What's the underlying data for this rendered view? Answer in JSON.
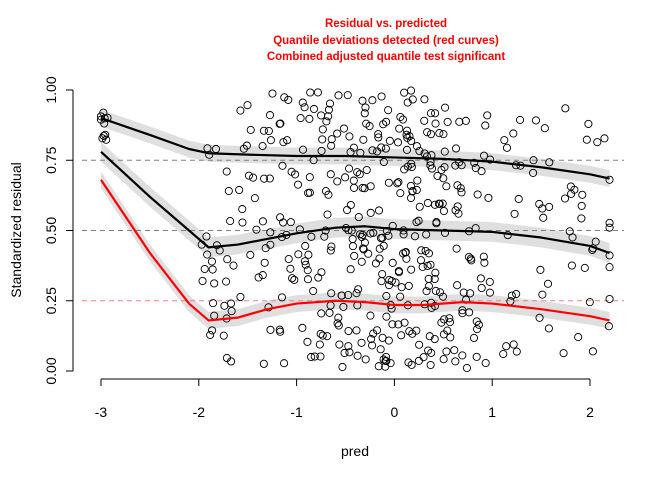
{
  "chart_data": {
    "type": "scatter",
    "title_lines": [
      "Residual vs. predicted",
      "Quantile deviations detected (red curves)",
      "Combined adjusted quantile test significant"
    ],
    "title_color": "#ff0000",
    "xlabel": "pred",
    "ylabel": "Standardized residual",
    "xlim": [
      -3.0,
      2.2
    ],
    "ylim": [
      0,
      1
    ],
    "xticks": [
      -3,
      -2,
      -1,
      0,
      1,
      2
    ],
    "xtick_labels": [
      "-3",
      "-2",
      "-1",
      "0",
      "1",
      "2"
    ],
    "yticks": [
      0,
      0.25,
      0.5,
      0.75,
      1
    ],
    "ytick_labels": [
      "0.00",
      "0.25",
      "0.50",
      "0.75",
      "1.00"
    ],
    "reference_lines": [
      {
        "y": 0.25,
        "color": "#f08080",
        "style": "dashed"
      },
      {
        "y": 0.5,
        "color": "#808080",
        "style": "dashed"
      },
      {
        "y": 0.75,
        "color": "#808080",
        "style": "dashed"
      }
    ],
    "quantile_curves": [
      {
        "quantile": 0.25,
        "color": "#ff0000",
        "band_halfwidth": 0.03,
        "points": [
          [
            -3.0,
            0.68
          ],
          [
            -2.5,
            0.42
          ],
          [
            -2.1,
            0.24
          ],
          [
            -1.9,
            0.18
          ],
          [
            -1.6,
            0.19
          ],
          [
            -1.3,
            0.22
          ],
          [
            -1.0,
            0.24
          ],
          [
            -0.6,
            0.25
          ],
          [
            -0.3,
            0.245
          ],
          [
            0.0,
            0.235
          ],
          [
            0.3,
            0.235
          ],
          [
            0.7,
            0.245
          ],
          [
            1.0,
            0.24
          ],
          [
            1.5,
            0.22
          ],
          [
            2.0,
            0.195
          ],
          [
            2.2,
            0.18
          ]
        ]
      },
      {
        "quantile": 0.5,
        "color": "#000000",
        "band_halfwidth": 0.035,
        "points": [
          [
            -3.0,
            0.78
          ],
          [
            -2.5,
            0.62
          ],
          [
            -2.1,
            0.5
          ],
          [
            -1.9,
            0.44
          ],
          [
            -1.6,
            0.45
          ],
          [
            -1.3,
            0.47
          ],
          [
            -1.0,
            0.49
          ],
          [
            -0.6,
            0.51
          ],
          [
            -0.3,
            0.515
          ],
          [
            0.0,
            0.505
          ],
          [
            0.5,
            0.5
          ],
          [
            1.0,
            0.495
          ],
          [
            1.5,
            0.475
          ],
          [
            2.0,
            0.445
          ],
          [
            2.2,
            0.42
          ]
        ]
      },
      {
        "quantile": 0.75,
        "color": "#000000",
        "band_halfwidth": 0.03,
        "points": [
          [
            -3.0,
            0.9
          ],
          [
            -2.5,
            0.84
          ],
          [
            -2.1,
            0.79
          ],
          [
            -1.9,
            0.775
          ],
          [
            -1.5,
            0.77
          ],
          [
            -1.0,
            0.765
          ],
          [
            -0.5,
            0.765
          ],
          [
            0.0,
            0.76
          ],
          [
            0.5,
            0.755
          ],
          [
            1.0,
            0.745
          ],
          [
            1.5,
            0.725
          ],
          [
            2.0,
            0.7
          ],
          [
            2.2,
            0.685
          ]
        ]
      }
    ],
    "point_groups": [
      {
        "x": -3.0,
        "n": 10,
        "y_range": [
          0.8,
          0.92
        ]
      },
      {
        "x": -1.9,
        "n": 16,
        "y_range": [
          0.05,
          0.9
        ]
      },
      {
        "x": -1.7,
        "n": 14,
        "y_range": [
          0.03,
          0.75
        ]
      },
      {
        "x": -1.5,
        "n": 14,
        "y_range": [
          0.03,
          0.99
        ]
      },
      {
        "x": -1.3,
        "n": 18,
        "y_range": [
          0.02,
          0.99
        ]
      },
      {
        "x": -1.1,
        "n": 22,
        "y_range": [
          0.02,
          0.99
        ]
      },
      {
        "x": -0.9,
        "n": 26,
        "y_range": [
          0.02,
          1.0
        ]
      },
      {
        "x": -0.7,
        "n": 30,
        "y_range": [
          0.01,
          1.0
        ]
      },
      {
        "x": -0.5,
        "n": 34,
        "y_range": [
          0.01,
          1.0
        ]
      },
      {
        "x": -0.3,
        "n": 38,
        "y_range": [
          0.01,
          1.0
        ]
      },
      {
        "x": -0.1,
        "n": 44,
        "y_range": [
          0.01,
          1.0
        ]
      },
      {
        "x": 0.1,
        "n": 46,
        "y_range": [
          0.01,
          1.0
        ]
      },
      {
        "x": 0.3,
        "n": 42,
        "y_range": [
          0.01,
          1.0
        ]
      },
      {
        "x": 0.5,
        "n": 36,
        "y_range": [
          0.01,
          1.0
        ]
      },
      {
        "x": 0.7,
        "n": 28,
        "y_range": [
          0.01,
          0.99
        ]
      },
      {
        "x": 0.9,
        "n": 22,
        "y_range": [
          0.01,
          0.95
        ]
      },
      {
        "x": 1.2,
        "n": 16,
        "y_range": [
          0.02,
          0.93
        ]
      },
      {
        "x": 1.5,
        "n": 14,
        "y_range": [
          0.02,
          0.92
        ]
      },
      {
        "x": 1.8,
        "n": 10,
        "y_range": [
          0.03,
          0.96
        ]
      },
      {
        "x": 2.0,
        "n": 12,
        "y_range": [
          0.02,
          0.96
        ]
      },
      {
        "x": 2.2,
        "n": 8,
        "y_range": [
          0.1,
          0.87
        ]
      }
    ]
  }
}
